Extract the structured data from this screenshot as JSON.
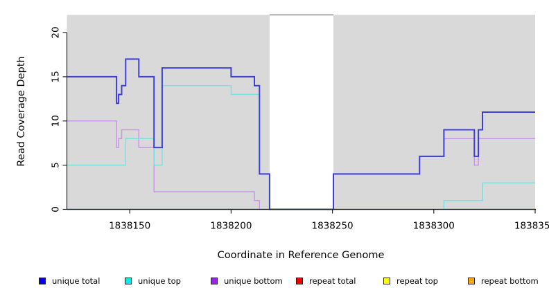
{
  "figure": {
    "background": "#ffffff",
    "panel_bg": "#d9d9d9",
    "gap_fill": "#ffffff",
    "gap_cap_color": "#888888",
    "axis_color": "#222222"
  },
  "axes": {
    "x_label": "Coordinate in Reference Genome",
    "y_label": "Read Coverage Depth",
    "x_tick_labels": [
      "1838150",
      "1838200",
      "1838250",
      "1838300",
      "1838350"
    ],
    "y_tick_labels": [
      "0",
      "5",
      "10",
      "15",
      "20"
    ]
  },
  "legend": [
    {
      "label": "unique total",
      "color": "#0000ee"
    },
    {
      "label": "unique top",
      "color": "#00eeee"
    },
    {
      "label": "unique bottom",
      "color": "#a020f0"
    },
    {
      "label": "repeat total",
      "color": "#ee0000"
    },
    {
      "label": "repeat top",
      "color": "#ffff00"
    },
    {
      "label": "repeat bottom",
      "color": "#ffa51e"
    }
  ],
  "chart_data": {
    "type": "line",
    "step": true,
    "title": "",
    "xlabel": "Coordinate in Reference Genome",
    "ylabel": "Read Coverage Depth",
    "xlim": [
      1838119,
      1838350
    ],
    "ylim": [
      0,
      22
    ],
    "x_ticks": [
      1838150,
      1838200,
      1838250,
      1838300,
      1838350
    ],
    "y_ticks": [
      0,
      5,
      10,
      15,
      20
    ],
    "grid": false,
    "legend_position": "bottom",
    "gap_region": {
      "x_start": 1838219,
      "x_end": 1838250.5
    },
    "series": [
      {
        "id": "repeat-total",
        "name": "repeat total",
        "color": "#dd2222",
        "width": 1.4,
        "points": [
          [
            1838119,
            0
          ]
        ]
      },
      {
        "id": "repeat-top",
        "name": "repeat top",
        "color": "#f2f230",
        "width": 1.4,
        "points": [
          [
            1838119,
            0
          ]
        ]
      },
      {
        "id": "repeat-bottom",
        "name": "repeat bottom",
        "color": "#ff9d20",
        "width": 1.6,
        "points": [
          [
            1838119,
            0
          ]
        ]
      },
      {
        "id": "unique-bottom",
        "name": "unique bottom",
        "color": "#c892e6",
        "width": 1.5,
        "points": [
          [
            1838119,
            10
          ],
          [
            1838143.5,
            7
          ],
          [
            1838144.5,
            8
          ],
          [
            1838146,
            9
          ],
          [
            1838154.5,
            7
          ],
          [
            1838162,
            2
          ],
          [
            1838211.5,
            1
          ],
          [
            1838214,
            0
          ],
          [
            1838250.5,
            4
          ],
          [
            1838293,
            6
          ],
          [
            1838305,
            8
          ],
          [
            1838320,
            5
          ],
          [
            1838322,
            8
          ]
        ]
      },
      {
        "id": "unique-top",
        "name": "unique top",
        "color": "#74e2e2",
        "width": 1.5,
        "points": [
          [
            1838119,
            5
          ],
          [
            1838148,
            8
          ],
          [
            1838162,
            5
          ],
          [
            1838166,
            14
          ],
          [
            1838200,
            13
          ],
          [
            1838214,
            4
          ],
          [
            1838219,
            0
          ],
          [
            1838305,
            1
          ],
          [
            1838324,
            3
          ]
        ]
      },
      {
        "id": "unique-total",
        "name": "unique total",
        "color": "#3232d8",
        "width": 2,
        "points": [
          [
            1838119,
            15
          ],
          [
            1838143.5,
            12
          ],
          [
            1838144.5,
            13
          ],
          [
            1838146,
            14
          ],
          [
            1838148,
            17
          ],
          [
            1838154.5,
            15
          ],
          [
            1838162,
            7
          ],
          [
            1838166,
            16
          ],
          [
            1838200,
            15
          ],
          [
            1838211.5,
            14
          ],
          [
            1838214,
            4
          ],
          [
            1838219,
            0
          ],
          [
            1838250.5,
            4
          ],
          [
            1838293,
            6
          ],
          [
            1838305,
            9
          ],
          [
            1838320,
            6
          ],
          [
            1838322,
            9
          ],
          [
            1838324,
            11
          ]
        ]
      }
    ]
  }
}
